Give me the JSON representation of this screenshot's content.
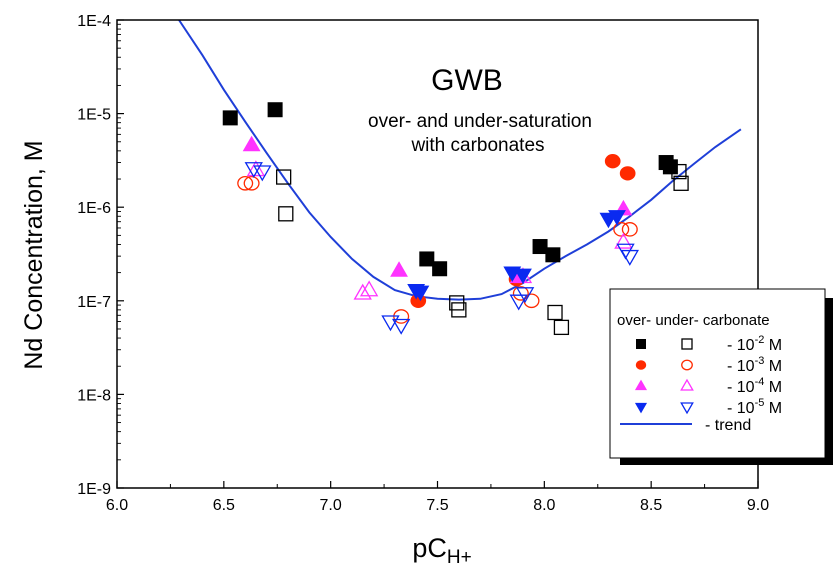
{
  "chart_data": {
    "type": "scatter",
    "title": "GWB",
    "subtitle_lines": [
      "over- and under-saturation",
      "with carbonates"
    ],
    "xlabel": "pC",
    "xlabel_subscript": "H+",
    "ylabel": "Nd Concentration, M",
    "xlim": [
      6.0,
      9.0
    ],
    "ylim": [
      1e-09,
      0.0001
    ],
    "yscale": "log",
    "x_ticks": [
      6.0,
      6.5,
      7.0,
      7.5,
      8.0,
      8.5,
      9.0
    ],
    "x_tick_labels": [
      "6.0",
      "6.5",
      "7.0",
      "7.5",
      "8.0",
      "8.5",
      "9.0"
    ],
    "y_ticks": [
      1e-09,
      1e-08,
      1e-07,
      1e-06,
      1e-05,
      0.0001
    ],
    "y_tick_labels": [
      "1E-9",
      "1E-8",
      "1E-7",
      "1E-6",
      "1E-5",
      "1E-4"
    ],
    "grid": false,
    "legend": {
      "placement": "bottom-right",
      "header": "over- under- carbonate",
      "rows": [
        {
          "prefix": "- 10",
          "exp": "-2",
          "suffix": " M"
        },
        {
          "prefix": "- 10",
          "exp": "-3",
          "suffix": " M"
        },
        {
          "prefix": "- 10",
          "exp": "-4",
          "suffix": " M"
        },
        {
          "prefix": "- 10",
          "exp": "-5",
          "suffix": " M"
        }
      ],
      "trend_label": "-  trend"
    },
    "series": [
      {
        "marker": "square",
        "filled": true,
        "color": "#000000",
        "points": [
          [
            6.53,
            9e-06
          ],
          [
            6.74,
            1.1e-05
          ],
          [
            7.45,
            2.8e-07
          ],
          [
            7.51,
            2.2e-07
          ],
          [
            7.98,
            3.8e-07
          ],
          [
            8.04,
            3.1e-07
          ],
          [
            8.57,
            3e-06
          ],
          [
            8.59,
            2.7e-06
          ]
        ]
      },
      {
        "marker": "square",
        "filled": false,
        "color": "#000000",
        "points": [
          [
            6.78,
            2.1e-06
          ],
          [
            6.79,
            8.5e-07
          ],
          [
            7.59,
            9.5e-08
          ],
          [
            7.6,
            8e-08
          ],
          [
            8.05,
            7.5e-08
          ],
          [
            8.08,
            5.2e-08
          ],
          [
            8.63,
            2.4e-06
          ],
          [
            8.64,
            1.8e-06
          ]
        ]
      },
      {
        "marker": "circle",
        "filled": true,
        "color": "#ff2a00",
        "points": [
          [
            7.41,
            1e-07
          ],
          [
            7.87,
            1.7e-07
          ],
          [
            8.32,
            3.1e-06
          ],
          [
            8.39,
            2.3e-06
          ]
        ]
      },
      {
        "marker": "circle",
        "filled": false,
        "color": "#ff2a00",
        "points": [
          [
            6.6,
            1.8e-06
          ],
          [
            6.63,
            1.8e-06
          ],
          [
            7.33,
            6.8e-08
          ],
          [
            7.89,
            1.2e-07
          ],
          [
            7.94,
            1e-07
          ],
          [
            8.36,
            5.8e-07
          ],
          [
            8.4,
            5.8e-07
          ]
        ]
      },
      {
        "marker": "triangle-up",
        "filled": true,
        "color": "#ff33ff",
        "points": [
          [
            6.63,
            4.6e-06
          ],
          [
            7.32,
            2.1e-07
          ],
          [
            7.88,
            1.8e-07
          ],
          [
            8.37,
            9.5e-07
          ]
        ]
      },
      {
        "marker": "triangle-up",
        "filled": false,
        "color": "#ff33ff",
        "points": [
          [
            6.65,
            2.5e-06
          ],
          [
            7.15,
            1.2e-07
          ],
          [
            7.18,
            1.3e-07
          ],
          [
            7.9,
            1.8e-07
          ],
          [
            8.37,
            4.2e-07
          ]
        ]
      },
      {
        "marker": "triangle-down",
        "filled": true,
        "color": "#0a2af0",
        "points": [
          [
            7.4,
            1.3e-07
          ],
          [
            7.42,
            1.25e-07
          ],
          [
            7.85,
            2e-07
          ],
          [
            7.9,
            1.9e-07
          ],
          [
            8.3,
            7.5e-07
          ],
          [
            8.34,
            8e-07
          ]
        ]
      },
      {
        "marker": "triangle-down",
        "filled": false,
        "color": "#0a2af0",
        "points": [
          [
            6.64,
            2.6e-06
          ],
          [
            6.68,
            2.4e-06
          ],
          [
            7.28,
            6e-08
          ],
          [
            7.33,
            5.5e-08
          ],
          [
            7.88,
            1e-07
          ],
          [
            7.91,
            1.2e-07
          ],
          [
            8.38,
            3.5e-07
          ],
          [
            8.4,
            3e-07
          ]
        ]
      },
      {
        "type": "line",
        "name": "trend",
        "color": "#1f3fd8",
        "x": [
          6.29,
          6.4,
          6.5,
          6.6,
          6.7,
          6.8,
          6.9,
          7.0,
          7.1,
          7.2,
          7.3,
          7.4,
          7.5,
          7.6,
          7.7,
          7.8,
          7.9,
          8.0,
          8.1,
          8.2,
          8.3,
          8.4,
          8.5,
          8.6,
          8.7,
          8.8,
          8.92
        ],
        "y": [
          0.0001,
          4.2e-05,
          1.8e-05,
          8.2e-06,
          3.8e-06,
          1.8e-06,
          8.8e-07,
          4.8e-07,
          2.8e-07,
          1.8e-07,
          1.3e-07,
          1.12e-07,
          1.05e-07,
          1.03e-07,
          1.05e-07,
          1.18e-07,
          1.55e-07,
          2.2e-07,
          3e-07,
          4e-07,
          5.5e-07,
          8e-07,
          1.2e-06,
          1.9e-06,
          2.9e-06,
          4.4e-06,
          6.8e-06
        ]
      }
    ]
  }
}
